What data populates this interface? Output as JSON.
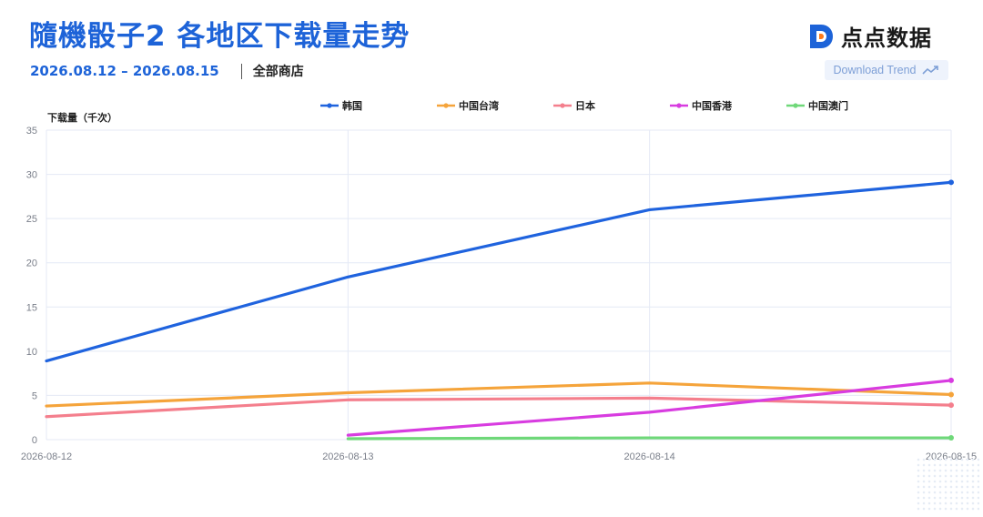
{
  "header": {
    "title": "隨機骰子2 各地区下载量走势",
    "date_range": "2026.08.12 – 2026.08.15",
    "store": "全部商店",
    "logo_text": "点点数据",
    "download_label": "Download Trend"
  },
  "colors": {
    "brand": "#1d63d8",
    "grid": "#e4e9f5"
  },
  "chart_data": {
    "type": "line",
    "ylabel": "下载量（千次）",
    "xlabel": "",
    "x": [
      "2026-08-12",
      "2026-08-13",
      "2026-08-14",
      "2026-08-15"
    ],
    "ylim": [
      0,
      35
    ],
    "yticks": [
      0,
      5,
      10,
      15,
      20,
      25,
      30,
      35
    ],
    "grid": true,
    "legend_position": "top",
    "series": [
      {
        "name": "韩国",
        "color": "#1f63de",
        "values": [
          8.9,
          18.4,
          26.0,
          29.1
        ]
      },
      {
        "name": "中国台湾",
        "color": "#f5a43b",
        "values": [
          3.8,
          5.3,
          6.4,
          5.1
        ]
      },
      {
        "name": "日本",
        "color": "#f47f8d",
        "values": [
          2.6,
          4.5,
          4.7,
          3.9
        ]
      },
      {
        "name": "中国香港",
        "color": "#d83ce0",
        "values": [
          null,
          0.5,
          3.1,
          6.7
        ]
      },
      {
        "name": "中国澳门",
        "color": "#6fd879",
        "values": [
          null,
          0.1,
          0.2,
          0.2
        ]
      }
    ]
  }
}
